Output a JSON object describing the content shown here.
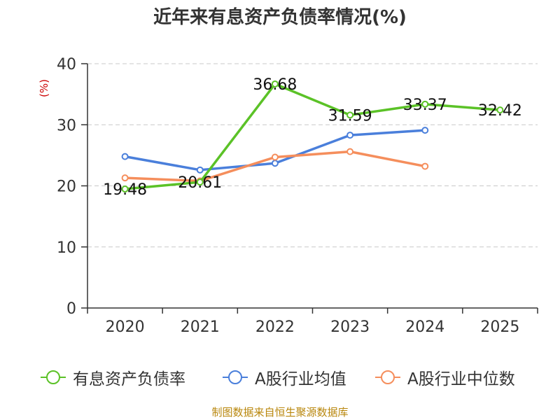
{
  "chart_data": {
    "type": "line",
    "title": "近年来有息资产负债率情况(%)",
    "ylabel": "(%)",
    "ylim": [
      0,
      40
    ],
    "yticks": [
      0,
      10,
      20,
      30,
      40
    ],
    "categories": [
      "2020",
      "2021",
      "2022",
      "2023",
      "2024",
      "2025"
    ],
    "grid": true,
    "legend_position": "bottom",
    "series": [
      {
        "name": "有息资产负债率",
        "color": "#5bc227",
        "values": [
          19.48,
          20.61,
          36.68,
          31.59,
          33.37,
          32.42
        ],
        "labels": [
          "19.48",
          "20.61",
          "36.68",
          "31.59",
          "33.37",
          "32.42"
        ]
      },
      {
        "name": "A股行业均值",
        "color": "#4a7fdb",
        "values": [
          24.8,
          22.6,
          23.7,
          28.3,
          29.1,
          null
        ]
      },
      {
        "name": "A股行业中位数",
        "color": "#f58e5c",
        "values": [
          21.3,
          20.8,
          24.7,
          25.6,
          23.2,
          null
        ]
      }
    ]
  },
  "source": "制图数据来自恒生聚源数据库"
}
